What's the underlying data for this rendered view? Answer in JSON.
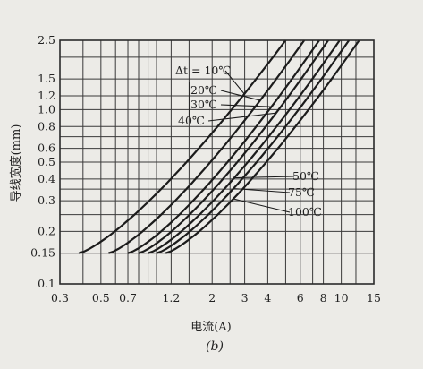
{
  "chart_data": {
    "type": "line",
    "xlabel": "电流(A)",
    "ylabel": "导线宽度(mm)",
    "caption": "(b)",
    "xscale": "log",
    "yscale": "log",
    "xlim": [
      0.3,
      15
    ],
    "ylim": [
      0.1,
      2.5
    ],
    "grid": true,
    "x_ticks": [
      {
        "value": 0.3,
        "label": "0.3"
      },
      {
        "value": 0.5,
        "label": "0.5"
      },
      {
        "value": 0.7,
        "label": "0.7"
      },
      {
        "value": 1.2,
        "label": "1.2"
      },
      {
        "value": 2,
        "label": "2"
      },
      {
        "value": 3,
        "label": "3"
      },
      {
        "value": 4,
        "label": "4"
      },
      {
        "value": 6,
        "label": "6"
      },
      {
        "value": 8,
        "label": "8"
      },
      {
        "value": 10,
        "label": "10"
      },
      {
        "value": 15,
        "label": "15"
      }
    ],
    "x_gridlines": [
      0.3,
      0.4,
      0.5,
      0.6,
      0.7,
      0.8,
      0.9,
      1.0,
      1.2,
      1.5,
      2,
      2.5,
      3,
      4,
      5,
      6,
      7,
      8,
      10,
      12,
      15
    ],
    "y_ticks": [
      {
        "value": 0.1,
        "label": "0.1"
      },
      {
        "value": 0.15,
        "label": "0.15"
      },
      {
        "value": 0.2,
        "label": "0.2"
      },
      {
        "value": 0.3,
        "label": "0.3"
      },
      {
        "value": 0.4,
        "label": "0.4"
      },
      {
        "value": 0.5,
        "label": "0.5"
      },
      {
        "value": 0.6,
        "label": "0.6"
      },
      {
        "value": 0.8,
        "label": "0.8"
      },
      {
        "value": 1.0,
        "label": "1.0"
      },
      {
        "value": 1.2,
        "label": "1.2"
      },
      {
        "value": 1.5,
        "label": "1.5"
      },
      {
        "value": 2.5,
        "label": "2.5"
      }
    ],
    "y_gridlines": [
      0.1,
      0.15,
      0.2,
      0.25,
      0.3,
      0.35,
      0.4,
      0.5,
      0.6,
      0.7,
      0.8,
      1.0,
      1.2,
      1.5,
      2.0,
      2.5
    ],
    "series": [
      {
        "name": "Δt = 10℃",
        "x": [
          0.38,
          5.0
        ],
        "y": [
          0.15,
          2.5
        ]
      },
      {
        "name": "20℃",
        "x": [
          0.55,
          6.3
        ],
        "y": [
          0.15,
          2.5
        ]
      },
      {
        "name": "30℃",
        "x": [
          0.7,
          7.6
        ],
        "y": [
          0.15,
          2.5
        ]
      },
      {
        "name": "40℃",
        "x": [
          0.8,
          8.5
        ],
        "y": [
          0.15,
          2.5
        ]
      },
      {
        "name": "50℃",
        "x": [
          0.9,
          9.8
        ],
        "y": [
          0.15,
          2.5
        ]
      },
      {
        "name": "75℃",
        "x": [
          1.0,
          11.0
        ],
        "y": [
          0.15,
          2.5
        ]
      },
      {
        "name": "100℃",
        "x": [
          1.12,
          12.5
        ],
        "y": [
          0.15,
          2.5
        ]
      }
    ]
  }
}
